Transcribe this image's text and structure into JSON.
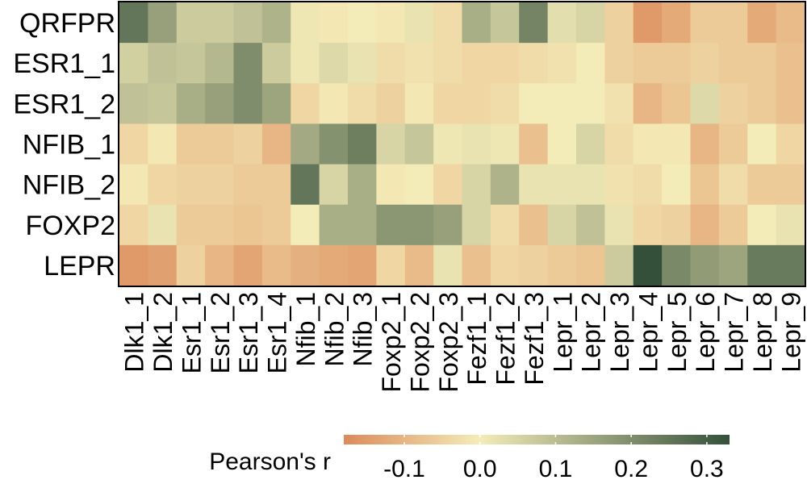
{
  "chart_data": {
    "type": "heatmap",
    "rows": [
      "QRFPR",
      "ESR1_1",
      "ESR1_2",
      "NFIB_1",
      "NFIB_2",
      "FOXP2",
      "LEPR"
    ],
    "columns": [
      "Dlk1_1",
      "Dlk1_2",
      "Esr1_1",
      "Esr1_2",
      "Esr1_3",
      "Esr1_4",
      "Nfib_1",
      "Nfib_2",
      "Nfib_3",
      "Foxp2_1",
      "Foxp2_2",
      "Foxp2_3",
      "Fezf1_1",
      "Fezf1_2",
      "Fezf1_3",
      "Lepr_1",
      "Lepr_2",
      "Lepr_3",
      "Lepr_4",
      "Lepr_5",
      "Lepr_6",
      "Lepr_7",
      "Lepr_8",
      "Lepr_9"
    ],
    "values": [
      [
        0.25,
        0.16,
        0.07,
        0.07,
        0.09,
        0.12,
        0.01,
        -0.01,
        0.0,
        -0.01,
        0.02,
        -0.03,
        0.13,
        0.08,
        0.22,
        0.03,
        0.05,
        -0.05,
        -0.15,
        -0.12,
        -0.06,
        -0.06,
        -0.12,
        -0.09
      ],
      [
        0.06,
        0.09,
        0.08,
        0.11,
        0.2,
        0.07,
        0.01,
        0.04,
        0.02,
        -0.03,
        -0.02,
        -0.03,
        -0.04,
        -0.04,
        -0.03,
        -0.02,
        0.0,
        -0.05,
        -0.06,
        -0.06,
        -0.05,
        -0.06,
        -0.06,
        -0.08
      ],
      [
        0.09,
        0.08,
        0.13,
        0.16,
        0.2,
        0.15,
        -0.04,
        -0.01,
        -0.03,
        -0.05,
        -0.01,
        -0.04,
        -0.04,
        -0.03,
        0.0,
        0.0,
        0.0,
        -0.02,
        -0.1,
        -0.07,
        0.04,
        -0.05,
        -0.06,
        -0.08
      ],
      [
        -0.04,
        -0.01,
        -0.06,
        -0.06,
        -0.05,
        -0.1,
        0.14,
        0.19,
        0.23,
        0.05,
        0.08,
        0.01,
        0.02,
        0.01,
        -0.08,
        0.0,
        0.05,
        -0.03,
        -0.01,
        -0.01,
        -0.1,
        -0.06,
        0.0,
        -0.04
      ],
      [
        -0.01,
        -0.04,
        -0.05,
        -0.05,
        -0.06,
        -0.06,
        0.25,
        0.05,
        0.13,
        -0.01,
        0.0,
        -0.04,
        0.05,
        0.12,
        0.02,
        0.02,
        0.02,
        -0.02,
        -0.03,
        0.0,
        -0.07,
        -0.03,
        -0.06,
        -0.06
      ],
      [
        -0.04,
        0.02,
        -0.06,
        -0.06,
        -0.07,
        -0.06,
        0.0,
        0.13,
        0.13,
        0.18,
        0.18,
        0.16,
        0.05,
        -0.03,
        -0.08,
        0.05,
        0.09,
        0.02,
        -0.04,
        -0.05,
        -0.1,
        -0.06,
        0.0,
        0.02
      ],
      [
        -0.15,
        -0.14,
        -0.05,
        -0.1,
        -0.13,
        -0.09,
        -0.11,
        -0.12,
        -0.13,
        -0.04,
        -0.09,
        0.02,
        -0.08,
        -0.04,
        -0.05,
        -0.06,
        -0.07,
        0.07,
        0.33,
        0.21,
        0.17,
        0.15,
        0.24,
        0.24
      ]
    ],
    "colorbar": {
      "title": "Pearson's r",
      "min": -0.18,
      "max": 0.33,
      "ticks": [
        -0.1,
        0.0,
        0.1,
        0.2,
        0.3
      ],
      "tick_labels": [
        "-0.1",
        "0.0",
        "0.1",
        "0.2",
        "0.3"
      ]
    },
    "colors": {
      "negative": "#dc8a5a",
      "zero": "#f4ecb8",
      "positive": "#34503a"
    },
    "grid": false,
    "legend_placement": "bottom"
  }
}
